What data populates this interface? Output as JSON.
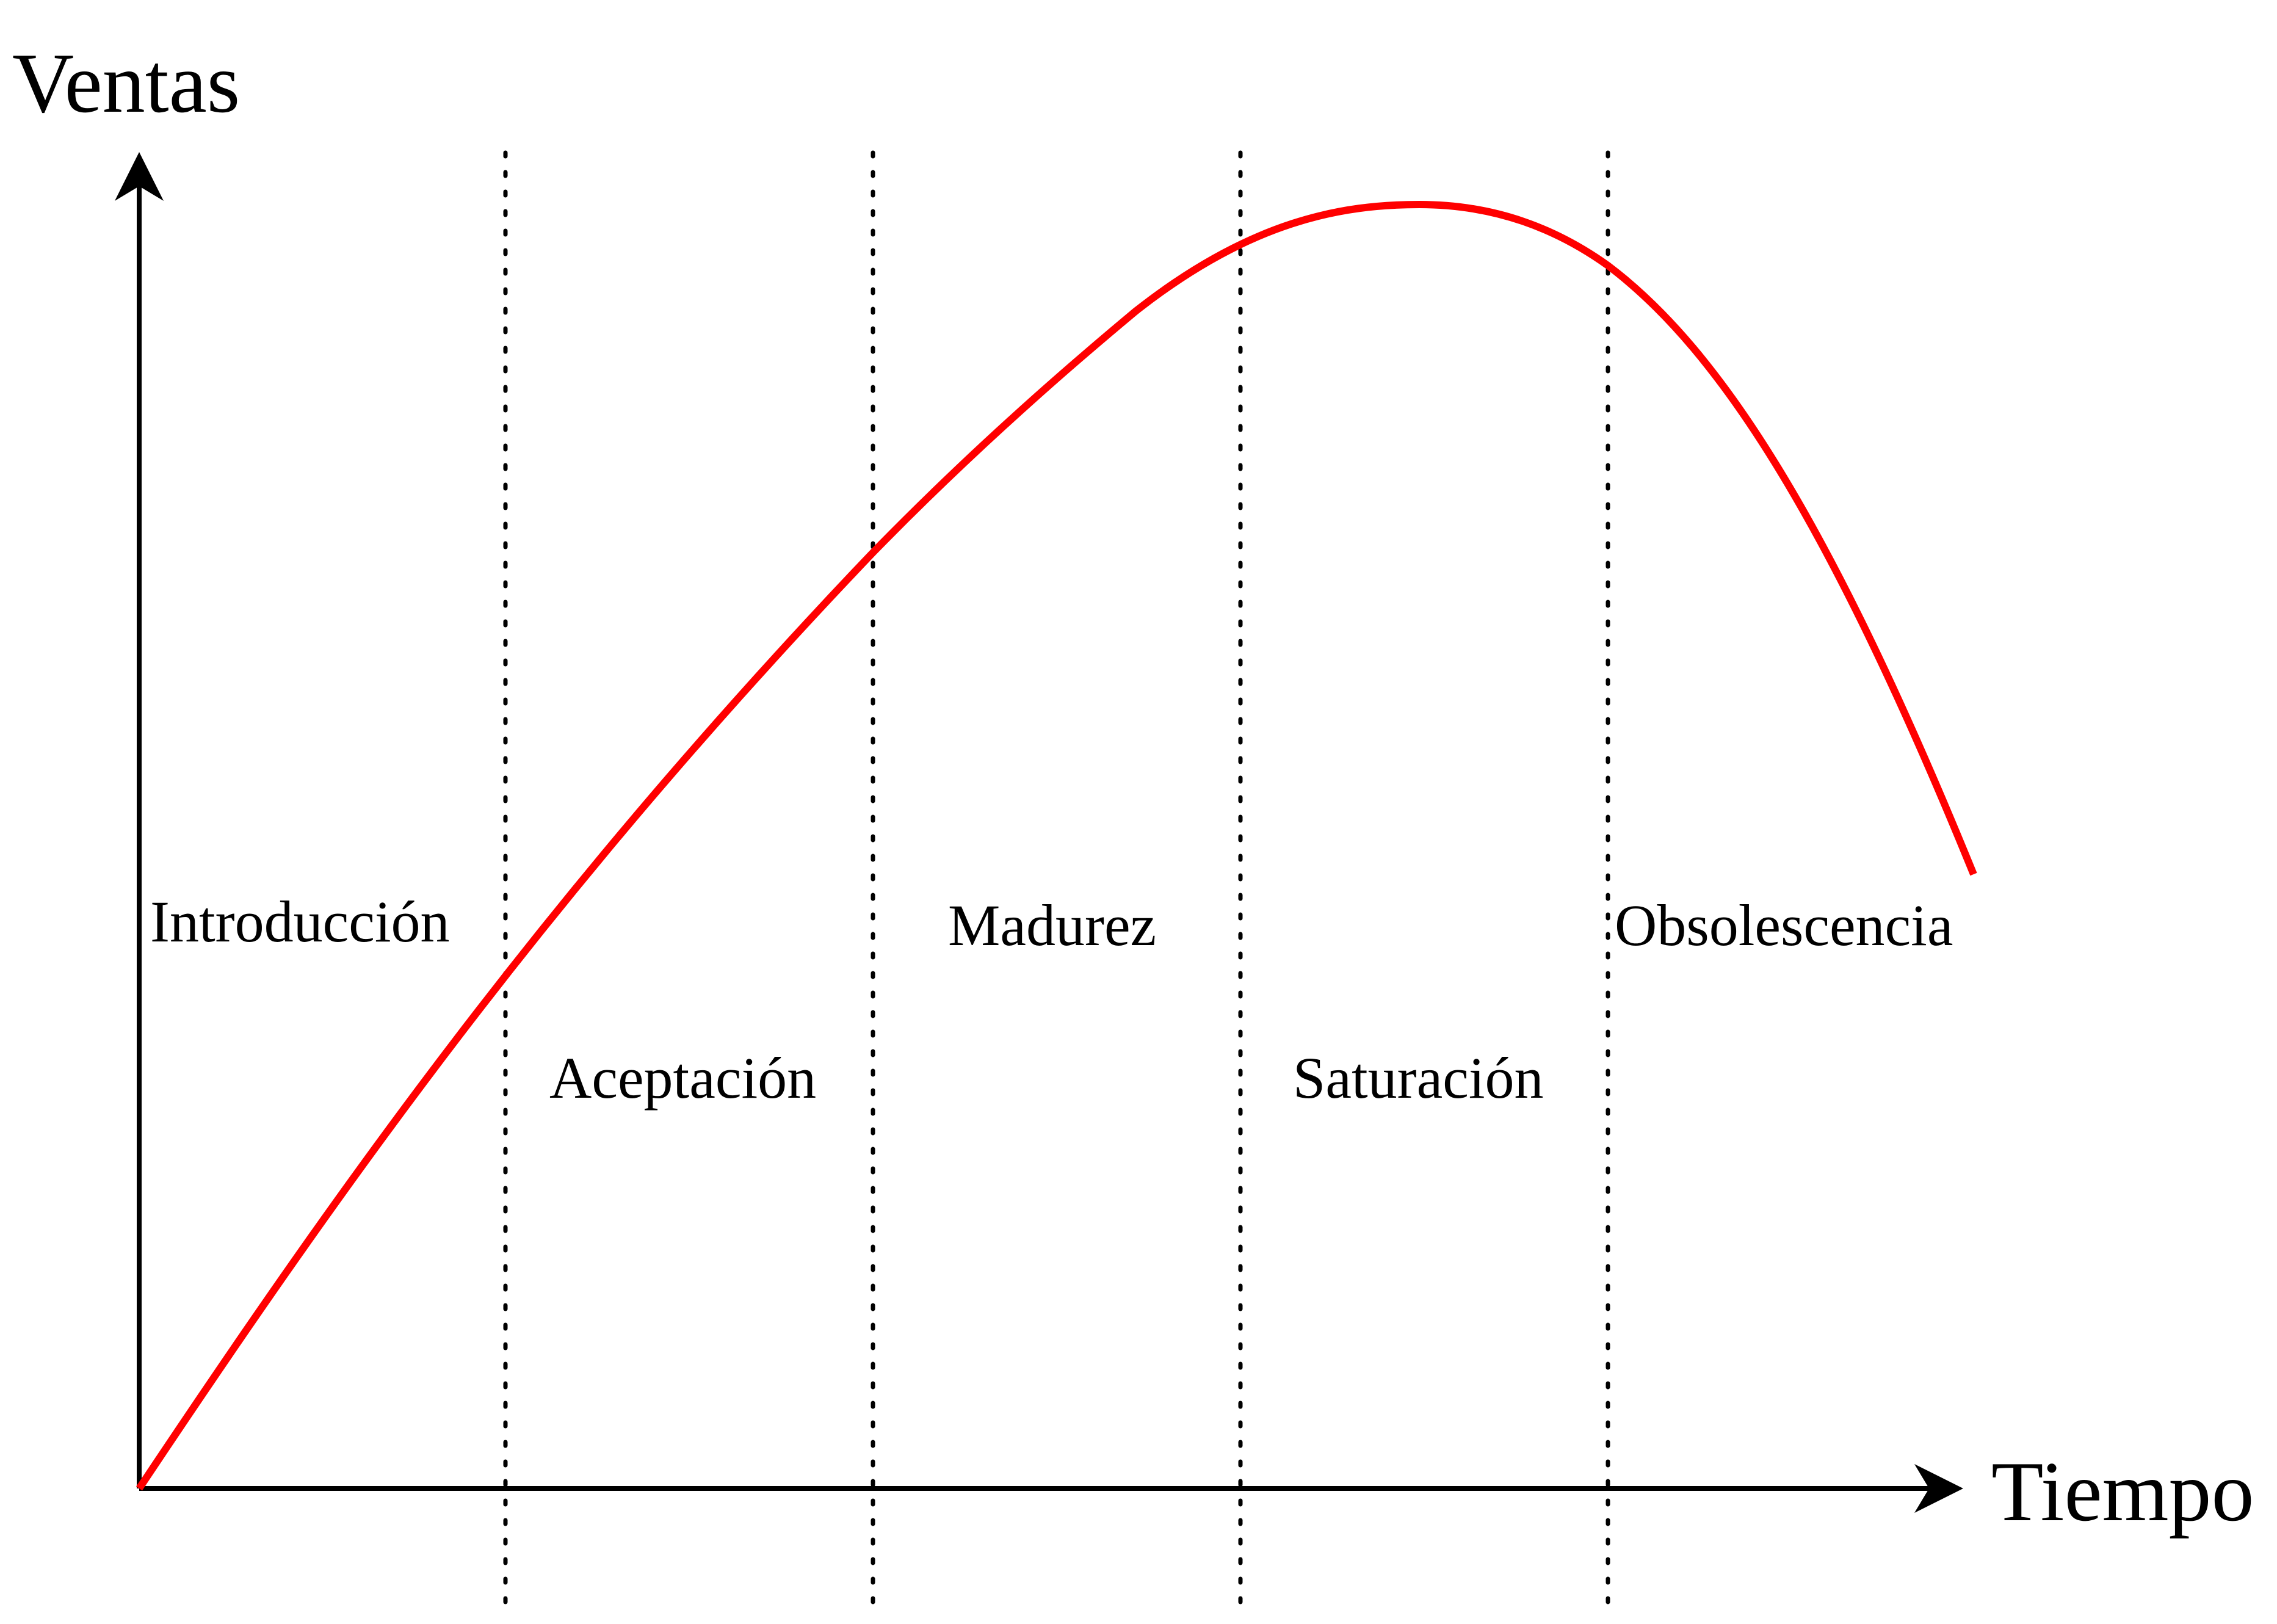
{
  "axes": {
    "y_label": "Ventas",
    "x_label": "Tiempo"
  },
  "stages": [
    {
      "label": "Introducción"
    },
    {
      "label": "Aceptación"
    },
    {
      "label": "Madurez"
    },
    {
      "label": "Saturación"
    },
    {
      "label": "Obsolescencia"
    }
  ],
  "colors": {
    "curve": "#ff0000",
    "axes": "#000000",
    "dividers": "#000000"
  }
}
